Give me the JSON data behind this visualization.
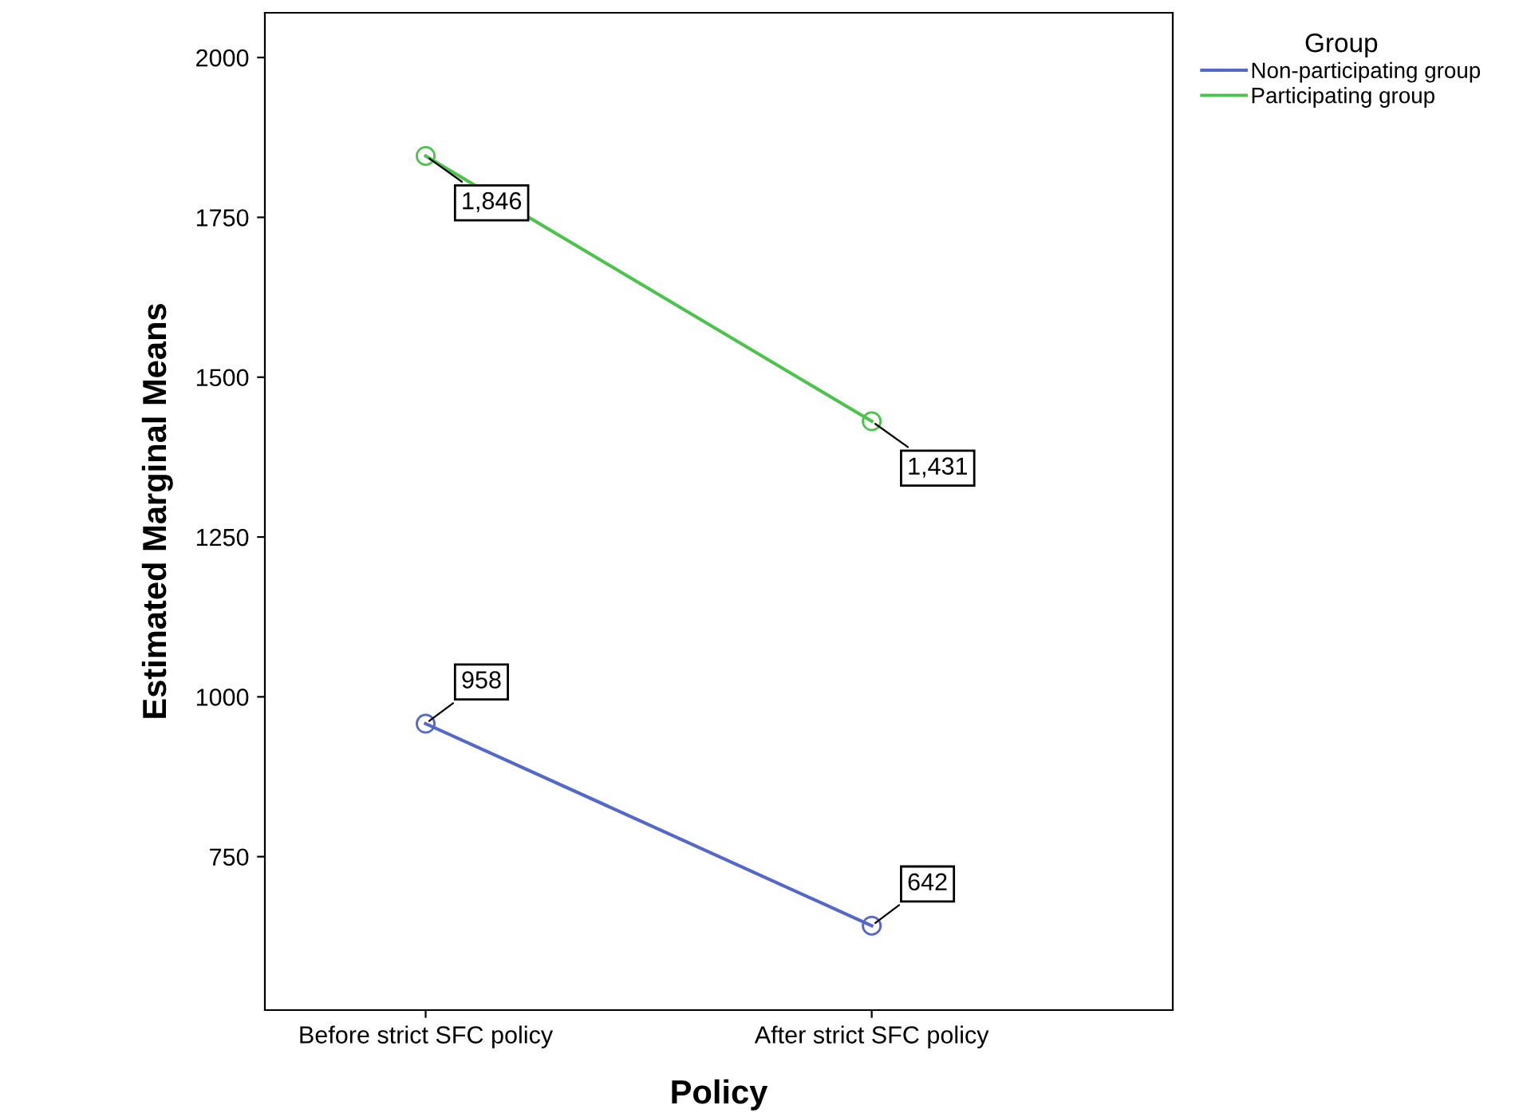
{
  "chart_data": {
    "type": "line",
    "xlabel": "Policy",
    "ylabel": "Estimated Marginal Means",
    "legend_title": "Group",
    "categories": [
      "Before strict SFC policy",
      "After strict SFC policy"
    ],
    "series": [
      {
        "name": "Non-participating group",
        "color": "#5468c8",
        "values": [
          958,
          642
        ],
        "value_labels": [
          "958",
          "642"
        ]
      },
      {
        "name": "Participating group",
        "color": "#4cc34c",
        "values": [
          1846,
          1431
        ],
        "value_labels": [
          "1,846",
          "1,431"
        ]
      }
    ],
    "ylim": [
      510,
      2070
    ],
    "yticks": [
      750,
      1000,
      1250,
      1500,
      1750,
      2000
    ],
    "marker": "circle",
    "line_style": "solid",
    "legend": "top right",
    "grid": false
  }
}
